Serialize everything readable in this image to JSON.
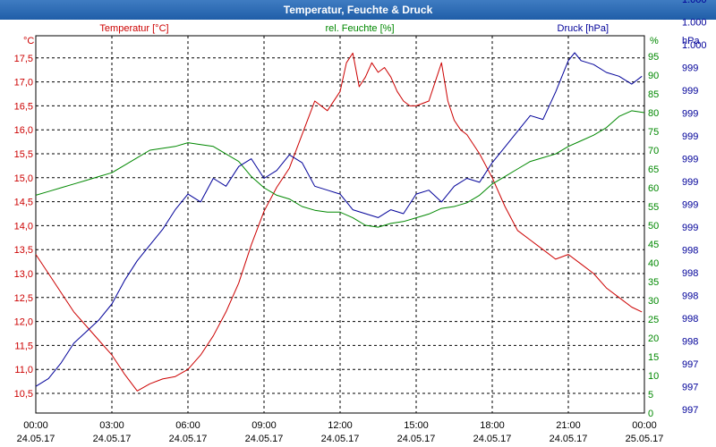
{
  "window": {
    "title": "Temperatur, Feuchte & Druck"
  },
  "colors": {
    "temperature": "#cc0000",
    "humidity": "#008800",
    "pressure": "#000099",
    "grid": "#000000",
    "title_bar": "#2a66ad"
  },
  "chart_data": {
    "type": "line",
    "title": "Temperatur, Feuchte & Druck",
    "grid": true,
    "x_axis": {
      "range": [
        "24.05.17 00:00",
        "25.05.17 00:00"
      ],
      "tick_times": [
        "00:00",
        "03:00",
        "06:00",
        "09:00",
        "12:00",
        "15:00",
        "18:00",
        "21:00",
        "00:00"
      ],
      "tick_dates": [
        "24.05.17",
        "24.05.17",
        "24.05.17",
        "24.05.17",
        "24.05.17",
        "24.05.17",
        "24.05.17",
        "24.05.17",
        "25.05.17"
      ]
    },
    "axes": {
      "temperature": {
        "unit": "°C",
        "ylim": [
          10.3,
          17.8
        ],
        "ticks": [
          "10,5",
          "11,0",
          "11,5",
          "12,0",
          "12,5",
          "13,0",
          "13,5",
          "14,0",
          "14,5",
          "15,0",
          "15,5",
          "16,0",
          "16,5",
          "17,0",
          "17,5"
        ]
      },
      "humidity": {
        "unit": "%",
        "ylim": [
          0,
          97.5
        ],
        "ticks": [
          "0",
          "5",
          "10",
          "15",
          "20",
          "25",
          "30",
          "35",
          "40",
          "45",
          "50",
          "55",
          "60",
          "65",
          "70",
          "75",
          "80",
          "85",
          "90",
          "95"
        ]
      },
      "pressure": {
        "unit": "hPa",
        "ticks": [
          "997",
          "997",
          "997",
          "998",
          "998",
          "998",
          "998",
          "998",
          "999",
          "999",
          "999",
          "999",
          "999",
          "999",
          "999",
          "999",
          "1.000",
          "1.000",
          "1.000"
        ]
      }
    },
    "series": [
      {
        "name": "Temperatur [°C]",
        "axis": "temperature",
        "x": [
          0,
          0.5,
          1,
          1.5,
          2,
          2.5,
          3,
          3.5,
          4,
          4.5,
          5,
          5.5,
          6,
          6.5,
          7,
          7.5,
          8,
          8.5,
          9,
          9.5,
          10,
          10.5,
          11,
          11.5,
          12,
          12.25,
          12.5,
          12.75,
          13,
          13.25,
          13.5,
          13.75,
          14,
          14.25,
          14.5,
          14.75,
          15,
          15.5,
          16,
          16.25,
          16.5,
          16.75,
          17,
          17.5,
          18,
          18.5,
          19,
          19.5,
          20,
          20.5,
          21,
          21.5,
          22,
          22.5,
          23,
          23.5,
          23.9
        ],
        "values": [
          13.4,
          13.0,
          12.6,
          12.2,
          11.9,
          11.6,
          11.3,
          10.9,
          10.55,
          10.7,
          10.8,
          10.85,
          11.0,
          11.3,
          11.7,
          12.2,
          12.8,
          13.6,
          14.3,
          14.8,
          15.2,
          15.9,
          16.6,
          16.4,
          16.8,
          17.4,
          17.6,
          16.9,
          17.1,
          17.4,
          17.2,
          17.3,
          17.1,
          16.8,
          16.6,
          16.5,
          16.5,
          16.6,
          17.4,
          16.6,
          16.2,
          16.0,
          15.9,
          15.5,
          15.0,
          14.4,
          13.9,
          13.7,
          13.5,
          13.3,
          13.4,
          13.2,
          13.0,
          12.7,
          12.5,
          12.3,
          12.2
        ]
      },
      {
        "name": "rel. Feuchte [%]",
        "axis": "humidity",
        "x": [
          0,
          0.5,
          1,
          1.5,
          2,
          2.5,
          3,
          3.5,
          4,
          4.5,
          5,
          5.5,
          6,
          6.5,
          7,
          7.5,
          8,
          8.5,
          9,
          9.5,
          10,
          10.5,
          11,
          11.5,
          12,
          12.5,
          13,
          13.5,
          14,
          14.5,
          15,
          15.5,
          16,
          16.5,
          17,
          17.5,
          18,
          18.5,
          19,
          19.5,
          20,
          20.5,
          21,
          21.5,
          22,
          22.5,
          23,
          23.5,
          24
        ],
        "values": [
          58,
          59,
          60,
          61,
          62,
          63,
          64,
          66,
          68,
          70,
          70.5,
          71,
          72,
          71.5,
          71,
          69,
          67,
          63,
          60,
          58,
          57,
          55,
          54,
          53.5,
          53.5,
          52,
          50,
          49.5,
          50.5,
          51,
          52,
          53,
          54.5,
          55,
          56,
          58,
          61,
          63,
          65,
          67,
          68,
          69,
          71,
          72.5,
          74,
          76,
          79,
          80.5,
          80
        ]
      },
      {
        "name": "Druck [hPa]",
        "axis": "pressure",
        "x": [
          0,
          0.5,
          1,
          1.5,
          2,
          2.5,
          3,
          3.5,
          4,
          4.5,
          5,
          5.5,
          6,
          6.5,
          7,
          7.5,
          8,
          8.5,
          9,
          9.5,
          10,
          10.5,
          11,
          11.5,
          12,
          12.5,
          13,
          13.5,
          14,
          14.5,
          15,
          15.5,
          16,
          16.5,
          17,
          17.5,
          18,
          18.5,
          19,
          19.5,
          20,
          20.5,
          21,
          21.25,
          21.5,
          22,
          22.5,
          23,
          23.5,
          23.9
        ],
        "values": [
          997.05,
          997.15,
          997.35,
          997.6,
          997.75,
          997.9,
          998.1,
          998.4,
          998.65,
          998.85,
          999.05,
          999.3,
          999.5,
          999.4,
          999.7,
          999.6,
          999.85,
          999.95,
          999.7,
          999.8,
          1000.0,
          999.9,
          999.6,
          999.55,
          999.5,
          999.3,
          999.25,
          999.2,
          999.3,
          999.25,
          999.5,
          999.55,
          999.4,
          999.6,
          999.7,
          999.65,
          999.9,
          1000.1,
          1000.3,
          1000.5,
          1000.45,
          1000.8,
          1001.2,
          1001.3,
          1001.2,
          1001.15,
          1001.05,
          1001.0,
          1000.9,
          1001.0
        ]
      }
    ]
  }
}
